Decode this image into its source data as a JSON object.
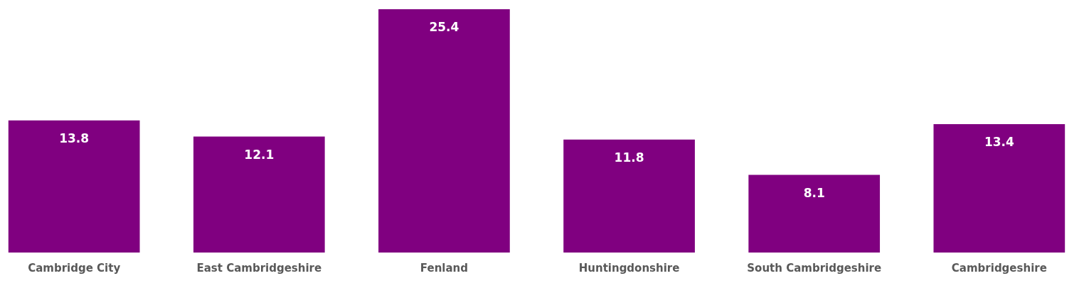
{
  "chart_data": {
    "type": "bar",
    "categories": [
      "Cambridge City",
      "East Cambridgeshire",
      "Fenland",
      "Huntingdonshire",
      "South Cambridgeshire",
      "Cambridgeshire"
    ],
    "values": [
      13.8,
      12.1,
      25.4,
      11.8,
      8.1,
      13.4
    ],
    "color": "#800080",
    "data_labels": true
  }
}
